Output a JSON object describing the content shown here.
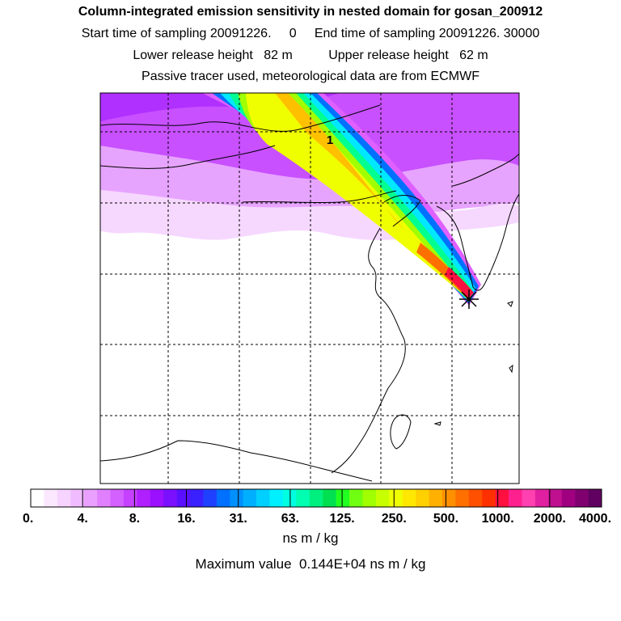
{
  "header": {
    "title": "Column-integrated emission sensitivity in nested domain for gosan_200912",
    "sampling": "Start time of sampling 20091226.     0     End time of sampling 20091226. 30000",
    "heights": "Lower release height   82 m          Upper release height   62 m",
    "note": "Passive tracer used, meteorological data are from ECMWF"
  },
  "chart_data": {
    "type": "heatmap",
    "title": "Column-integrated emission sensitivity in nested domain for gosan_200912",
    "colorbar": {
      "tick_labels": [
        "0.",
        "4.",
        "8.",
        "16.",
        "31.",
        "63.",
        "125.",
        "250.",
        "500.",
        "1000.",
        "2000.",
        "4000."
      ],
      "colors": [
        "#ffffff",
        "#fbe8ff",
        "#f6d4ff",
        "#f0bcff",
        "#e9a0ff",
        "#e080ff",
        "#d460ff",
        "#c540ff",
        "#b020ff",
        "#9a10ff",
        "#7a10ff",
        "#5a10ff",
        "#3a20ff",
        "#2040ff",
        "#0070ff",
        "#0090ff",
        "#00b0ff",
        "#00d0ff",
        "#00f0ff",
        "#00ffe0",
        "#00ffb0",
        "#00f080",
        "#00e050",
        "#20ff20",
        "#70ff10",
        "#a0ff00",
        "#c8ff00",
        "#f0ff00",
        "#ffe800",
        "#ffd000",
        "#ffb000",
        "#ff9000",
        "#ff7000",
        "#ff5000",
        "#ff3000",
        "#ff1040",
        "#ff2090",
        "#ff40b0",
        "#e020a0",
        "#c01090",
        "#a00080",
        "#800070",
        "#600060"
      ],
      "unit": "ns m / kg"
    },
    "max_value": "Maximum value  0.144E+04 ns m / kg",
    "release_marker": "1",
    "source_symbol": "star"
  }
}
